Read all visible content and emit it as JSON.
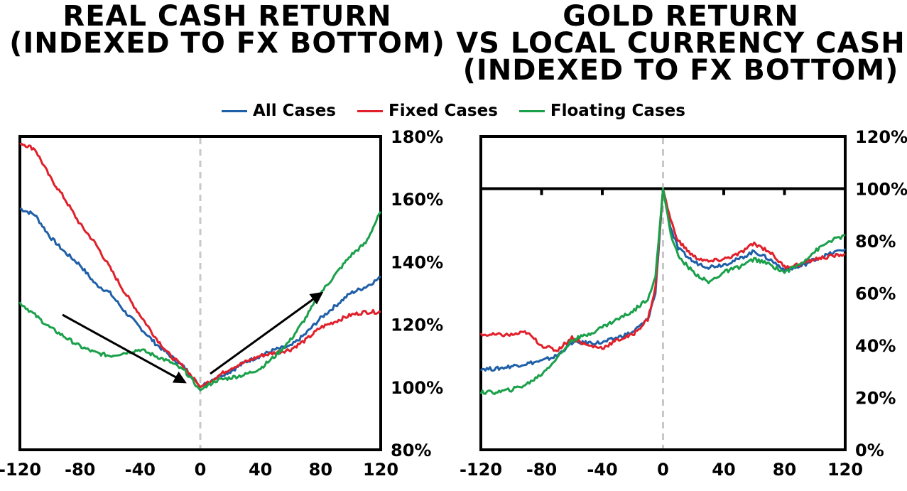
{
  "titles": {
    "left": [
      "REAL CASH RETURN",
      "(INDEXED TO FX BOTTOM)"
    ],
    "right": [
      "GOLD RETURN",
      "VS LOCAL CURRENCY CASH",
      "(INDEXED TO FX BOTTOM)"
    ]
  },
  "legend": [
    {
      "name": "All Cases",
      "color": "#1f5fa8"
    },
    {
      "name": "Fixed Cases",
      "color": "#e0202a"
    },
    {
      "name": "Floating Cases",
      "color": "#1aa04a"
    }
  ],
  "chart_data": [
    {
      "type": "line",
      "title": "REAL CASH RETURN (INDEXED TO FX BOTTOM)",
      "xlim": [
        -120,
        120
      ],
      "ylim": [
        80,
        180
      ],
      "x_ticks": [
        "-120",
        "-80",
        "-40",
        "0",
        "40",
        "80",
        "120"
      ],
      "y_ticks": [
        "80%",
        "100%",
        "120%",
        "140%",
        "160%",
        "180%"
      ],
      "y_axis_side": "right",
      "reference_line_x": 0,
      "annotations": [
        "arrow pointing down toward bottom",
        "arrow pointing up from bottom"
      ],
      "x": [
        -120,
        -110,
        -100,
        -90,
        -80,
        -70,
        -60,
        -50,
        -40,
        -30,
        -20,
        -10,
        0,
        10,
        20,
        30,
        40,
        50,
        60,
        70,
        80,
        90,
        100,
        110,
        120
      ],
      "series": [
        {
          "name": "All Cases",
          "color": "#1f5fa8",
          "values": [
            157,
            155,
            148,
            143,
            139,
            133,
            130,
            124,
            119,
            114,
            110,
            106,
            100,
            103,
            105,
            108,
            110,
            112,
            113,
            117,
            122,
            126,
            130,
            132,
            135
          ]
        },
        {
          "name": "Fixed Cases",
          "color": "#e0202a",
          "values": [
            178,
            176,
            167,
            160,
            152,
            146,
            138,
            130,
            123,
            116,
            110,
            106,
            100,
            103,
            106,
            108,
            110,
            111,
            112,
            115,
            119,
            121,
            123,
            124,
            124
          ]
        },
        {
          "name": "Floating Cases",
          "color": "#1aa04a",
          "values": [
            127,
            123,
            119,
            116,
            113,
            111,
            110,
            111,
            112,
            110,
            108,
            105,
            99,
            102,
            103,
            104,
            106,
            110,
            115,
            122,
            130,
            136,
            142,
            146,
            156
          ]
        }
      ]
    },
    {
      "type": "line",
      "title": "GOLD RETURN VS LOCAL CURRENCY CASH (INDEXED TO FX BOTTOM)",
      "xlim": [
        -120,
        120
      ],
      "ylim": [
        0,
        120
      ],
      "x_ticks": [
        "-120",
        "-80",
        "-40",
        "0",
        "40",
        "80",
        "120"
      ],
      "y_ticks": [
        "0%",
        "20%",
        "40%",
        "60%",
        "80%",
        "100%",
        "120%"
      ],
      "y_axis_side": "right",
      "reference_line_x": 0,
      "x": [
        -120,
        -110,
        -100,
        -90,
        -80,
        -70,
        -60,
        -50,
        -40,
        -30,
        -20,
        -10,
        -5,
        0,
        5,
        10,
        20,
        30,
        40,
        50,
        60,
        70,
        80,
        90,
        100,
        110,
        120
      ],
      "series": [
        {
          "name": "All Cases",
          "color": "#1f5fa8",
          "values": [
            31,
            31,
            32,
            33,
            34,
            36,
            41,
            41,
            41,
            43,
            45,
            50,
            60,
            100,
            85,
            77,
            72,
            70,
            71,
            73,
            76,
            73,
            69,
            70,
            73,
            75,
            77
          ]
        },
        {
          "name": "Fixed Cases",
          "color": "#e0202a",
          "values": [
            44,
            44,
            44,
            45,
            40,
            38,
            43,
            40,
            39,
            42,
            44,
            50,
            62,
            100,
            88,
            80,
            74,
            72,
            73,
            75,
            79,
            76,
            70,
            71,
            73,
            74,
            75
          ]
        },
        {
          "name": "Floating Cases",
          "color": "#1aa04a",
          "values": [
            22,
            22,
            23,
            25,
            29,
            35,
            42,
            44,
            47,
            50,
            53,
            58,
            66,
            100,
            83,
            74,
            68,
            64,
            68,
            70,
            73,
            71,
            68,
            71,
            76,
            80,
            82
          ]
        }
      ]
    }
  ]
}
